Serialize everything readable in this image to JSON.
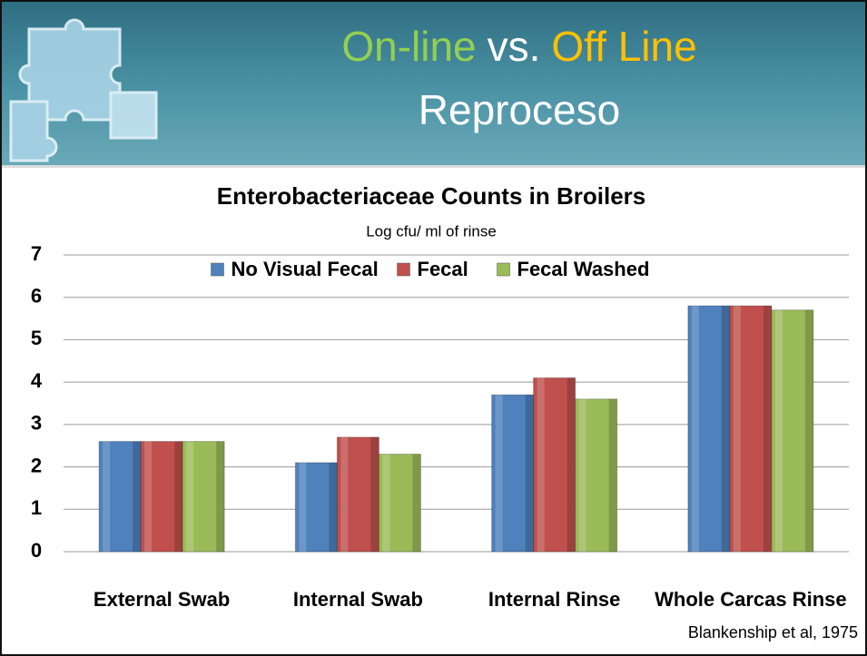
{
  "slide": {
    "title_parts": [
      {
        "text": "On-line",
        "color": "#92d050"
      },
      {
        "text": "vs.",
        "color": "#ffffff"
      },
      {
        "text": "Off Line",
        "color": "#ffc000"
      }
    ],
    "subtitle": "Reproceso"
  },
  "chart_data": {
    "type": "bar",
    "title": "Enterobacteriaceae Counts in Broilers",
    "subtitle": "Log cfu/ ml of rinse",
    "categories": [
      "External Swab",
      "Internal Swab",
      "Internal Rinse",
      "Whole Carcas Rinse"
    ],
    "series": [
      {
        "name": "No Visual Fecal",
        "color": "#4f81bd",
        "values": [
          2.6,
          2.1,
          3.7,
          5.8
        ]
      },
      {
        "name": "Fecal",
        "color": "#c0504d",
        "values": [
          2.6,
          2.7,
          4.1,
          5.8
        ]
      },
      {
        "name": "Fecal Washed",
        "color": "#9bbb59",
        "values": [
          2.6,
          2.3,
          3.6,
          5.7
        ]
      }
    ],
    "ylim": [
      0,
      7
    ],
    "yticks": [
      0,
      1,
      2,
      3,
      4,
      5,
      6,
      7
    ],
    "grid": true,
    "legend": "top",
    "source": "Blankenship et al, 1975"
  }
}
